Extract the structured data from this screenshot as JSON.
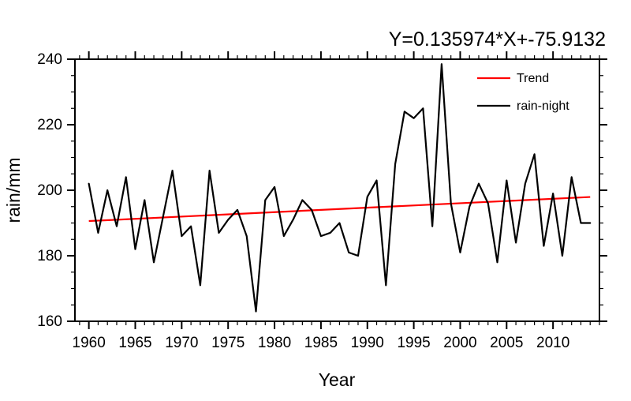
{
  "chart_data": {
    "type": "line",
    "title": "Y=0.135974*X+-75.9132",
    "xlabel": "Year",
    "ylabel": "rain/mm",
    "xlim": [
      1958.5,
      2015
    ],
    "ylim": [
      160,
      240
    ],
    "x_major_ticks": [
      1960,
      1965,
      1970,
      1975,
      1980,
      1985,
      1990,
      1995,
      2000,
      2005,
      2010
    ],
    "x_minor_step": 1,
    "y_major_ticks": [
      160,
      180,
      200,
      220,
      240
    ],
    "y_minor_step": 5,
    "grid": false,
    "background_color": "#ffffff",
    "axis_color": "#000000",
    "series": [
      {
        "name": "rain-night",
        "kind": "data",
        "color": "#000000",
        "x": [
          1960,
          1961,
          1962,
          1963,
          1964,
          1965,
          1966,
          1967,
          1968,
          1969,
          1970,
          1971,
          1972,
          1973,
          1974,
          1975,
          1976,
          1977,
          1978,
          1979,
          1980,
          1981,
          1982,
          1983,
          1984,
          1985,
          1986,
          1987,
          1988,
          1989,
          1990,
          1991,
          1992,
          1993,
          1994,
          1995,
          1996,
          1997,
          1998,
          1999,
          2000,
          2001,
          2002,
          2003,
          2004,
          2005,
          2006,
          2007,
          2008,
          2009,
          2010,
          2011,
          2012,
          2013,
          2014
        ],
        "y": [
          202,
          187,
          200,
          189,
          204,
          182,
          197,
          178,
          192,
          206,
          186,
          189,
          171,
          206,
          187,
          191,
          194,
          186,
          163,
          197,
          201,
          186,
          191,
          197,
          194,
          186,
          187,
          190,
          181,
          180,
          198,
          203,
          171,
          208,
          224,
          222,
          225,
          189,
          238.5,
          196,
          181,
          195,
          202,
          196,
          178,
          203,
          184,
          202,
          211,
          183,
          199,
          180,
          204,
          190,
          190
        ]
      },
      {
        "name": "Trend",
        "kind": "trend",
        "color": "#ff0000",
        "slope": 0.135974,
        "intercept": -75.9132
      }
    ],
    "legend": {
      "position": "top-right-inside",
      "entries": [
        {
          "label": "Trend",
          "color": "#ff0000"
        },
        {
          "label": "rain-night",
          "color": "#000000"
        }
      ]
    }
  }
}
